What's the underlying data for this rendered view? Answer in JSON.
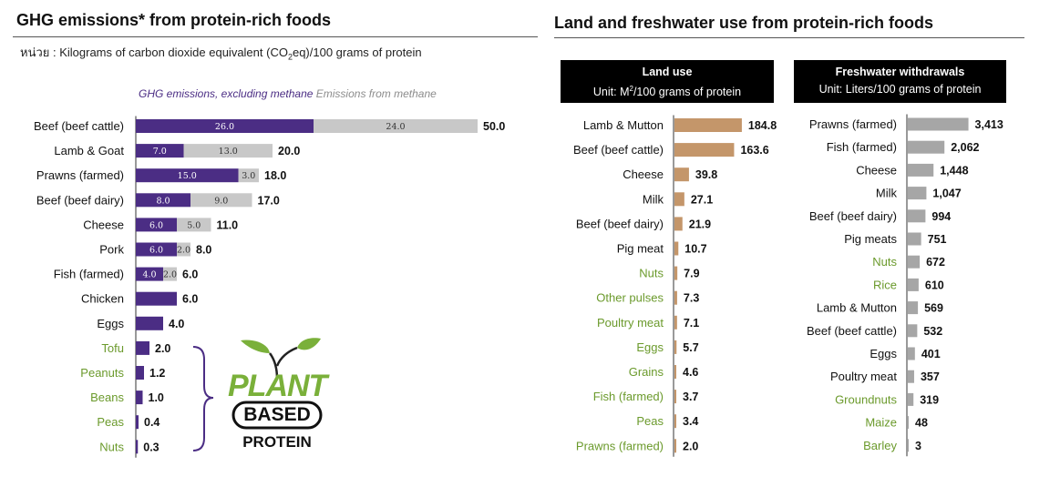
{
  "left": {
    "title": "GHG emissions* from protein-rich foods",
    "unit_prefix": "หน่วย : Kilograms of carbon dioxide equivalent  (CO",
    "unit_sub": "2",
    "unit_suffix": "eq)/100 grams of protein",
    "legend_a": "GHG emissions, excluding methane",
    "legend_b": "Emissions from methane",
    "logo_line1": "PLANT",
    "logo_line2": "BASED",
    "logo_line3": "PROTEIN"
  },
  "right": {
    "title": "Land and freshwater use from protein-rich foods",
    "land_header": "Land use",
    "land_unit_prefix": "Unit: M",
    "land_unit_sup": "2",
    "land_unit_suffix": "/100 grams of protein",
    "water_header": "Freshwater withdrawals",
    "water_unit": "Unit: Liters/100 grams of protein"
  },
  "colors": {
    "purple": "#4b2d84",
    "gray": "#c8c8c8",
    "tan": "#c4966a",
    "bar_gray": "#a6a6a6",
    "plant_label": "#6b9a2c",
    "animal_label": "#111111",
    "brace": "#4b2d84"
  },
  "chart_data": [
    {
      "type": "bar",
      "orientation": "horizontal",
      "stacked": true,
      "title": "GHG emissions* from protein-rich foods",
      "categories": [
        "Beef (beef cattle)",
        "Lamb & Goat",
        "Prawns (farmed)",
        "Beef (beef dairy)",
        "Cheese",
        "Pork",
        "Fish (farmed)",
        "Chicken",
        "Eggs",
        "Tofu",
        "Peanuts",
        "Beans",
        "Peas",
        "Nuts"
      ],
      "plant_based": [
        false,
        false,
        false,
        false,
        false,
        false,
        false,
        false,
        false,
        true,
        true,
        true,
        true,
        true
      ],
      "series": [
        {
          "name": "GHG emissions, excluding methane",
          "values": [
            26.0,
            7.0,
            15.0,
            8.0,
            6.0,
            6.0,
            4.0,
            6.0,
            4.0,
            2.0,
            1.2,
            1.0,
            0.4,
            0.3
          ],
          "labels": [
            "26.0",
            "7.0",
            "15.0",
            "8.0",
            "6.0",
            "6.0",
            "4.0",
            "",
            "",
            "",
            "",
            "",
            "",
            ""
          ]
        },
        {
          "name": "Emissions from methane",
          "values": [
            24.0,
            13.0,
            3.0,
            9.0,
            5.0,
            2.0,
            2.0,
            0,
            0,
            0,
            0,
            0,
            0,
            0
          ],
          "labels": [
            "24.0",
            "13.0",
            "3.0",
            "9.0",
            "5.0",
            "2.0",
            "2.0",
            "",
            "",
            "",
            "",
            "",
            "",
            ""
          ]
        }
      ],
      "totals": [
        "50.0",
        "20.0",
        "18.0",
        "17.0",
        "11.0",
        "8.0",
        "6.0",
        "6.0",
        "4.0",
        "2.0",
        "1.2",
        "1.0",
        "0.4",
        "0.3"
      ]
    },
    {
      "type": "bar",
      "orientation": "horizontal",
      "title": "Land use",
      "categories": [
        "Lamb & Mutton",
        "Beef (beef cattle)",
        "Cheese",
        "Milk",
        "Beef (beef dairy)",
        "Pig meat",
        "Nuts",
        "Other pulses",
        "Poultry meat",
        "Eggs",
        "Grains",
        "Fish (farmed)",
        "Peas",
        "Prawns (farmed)"
      ],
      "plant_based": [
        false,
        false,
        false,
        false,
        false,
        false,
        true,
        true,
        true,
        true,
        true,
        true,
        true,
        true
      ],
      "values": [
        184.8,
        163.6,
        39.8,
        27.1,
        21.9,
        10.7,
        7.9,
        7.3,
        7.1,
        5.7,
        4.6,
        3.7,
        3.4,
        2.0
      ],
      "labels": [
        "184.8",
        "163.6",
        "39.8",
        "27.1",
        "21.9",
        "10.7",
        "7.9",
        "7.3",
        "7.1",
        "5.7",
        "4.6",
        "3.7",
        "3.4",
        "2.0"
      ]
    },
    {
      "type": "bar",
      "orientation": "horizontal",
      "title": "Freshwater withdrawals",
      "categories": [
        "Prawns (farmed)",
        "Fish (farmed)",
        "Cheese",
        "Milk",
        "Beef (beef dairy)",
        "Pig meats",
        "Nuts",
        "Rice",
        "Lamb & Mutton",
        "Beef (beef cattle)",
        "Eggs",
        "Poultry meat",
        "Groundnuts",
        "Maize",
        "Barley"
      ],
      "plant_based": [
        false,
        false,
        false,
        false,
        false,
        false,
        true,
        true,
        false,
        false,
        false,
        false,
        true,
        true,
        true
      ],
      "values": [
        3413,
        2062,
        1448,
        1047,
        994,
        751,
        672,
        610,
        569,
        532,
        401,
        357,
        319,
        48,
        3
      ],
      "labels": [
        "3,413",
        "2,062",
        "1,448",
        "1,047",
        "994",
        "751",
        "672",
        "610",
        "569",
        "532",
        "401",
        "357",
        "319",
        "48",
        "3"
      ]
    }
  ]
}
